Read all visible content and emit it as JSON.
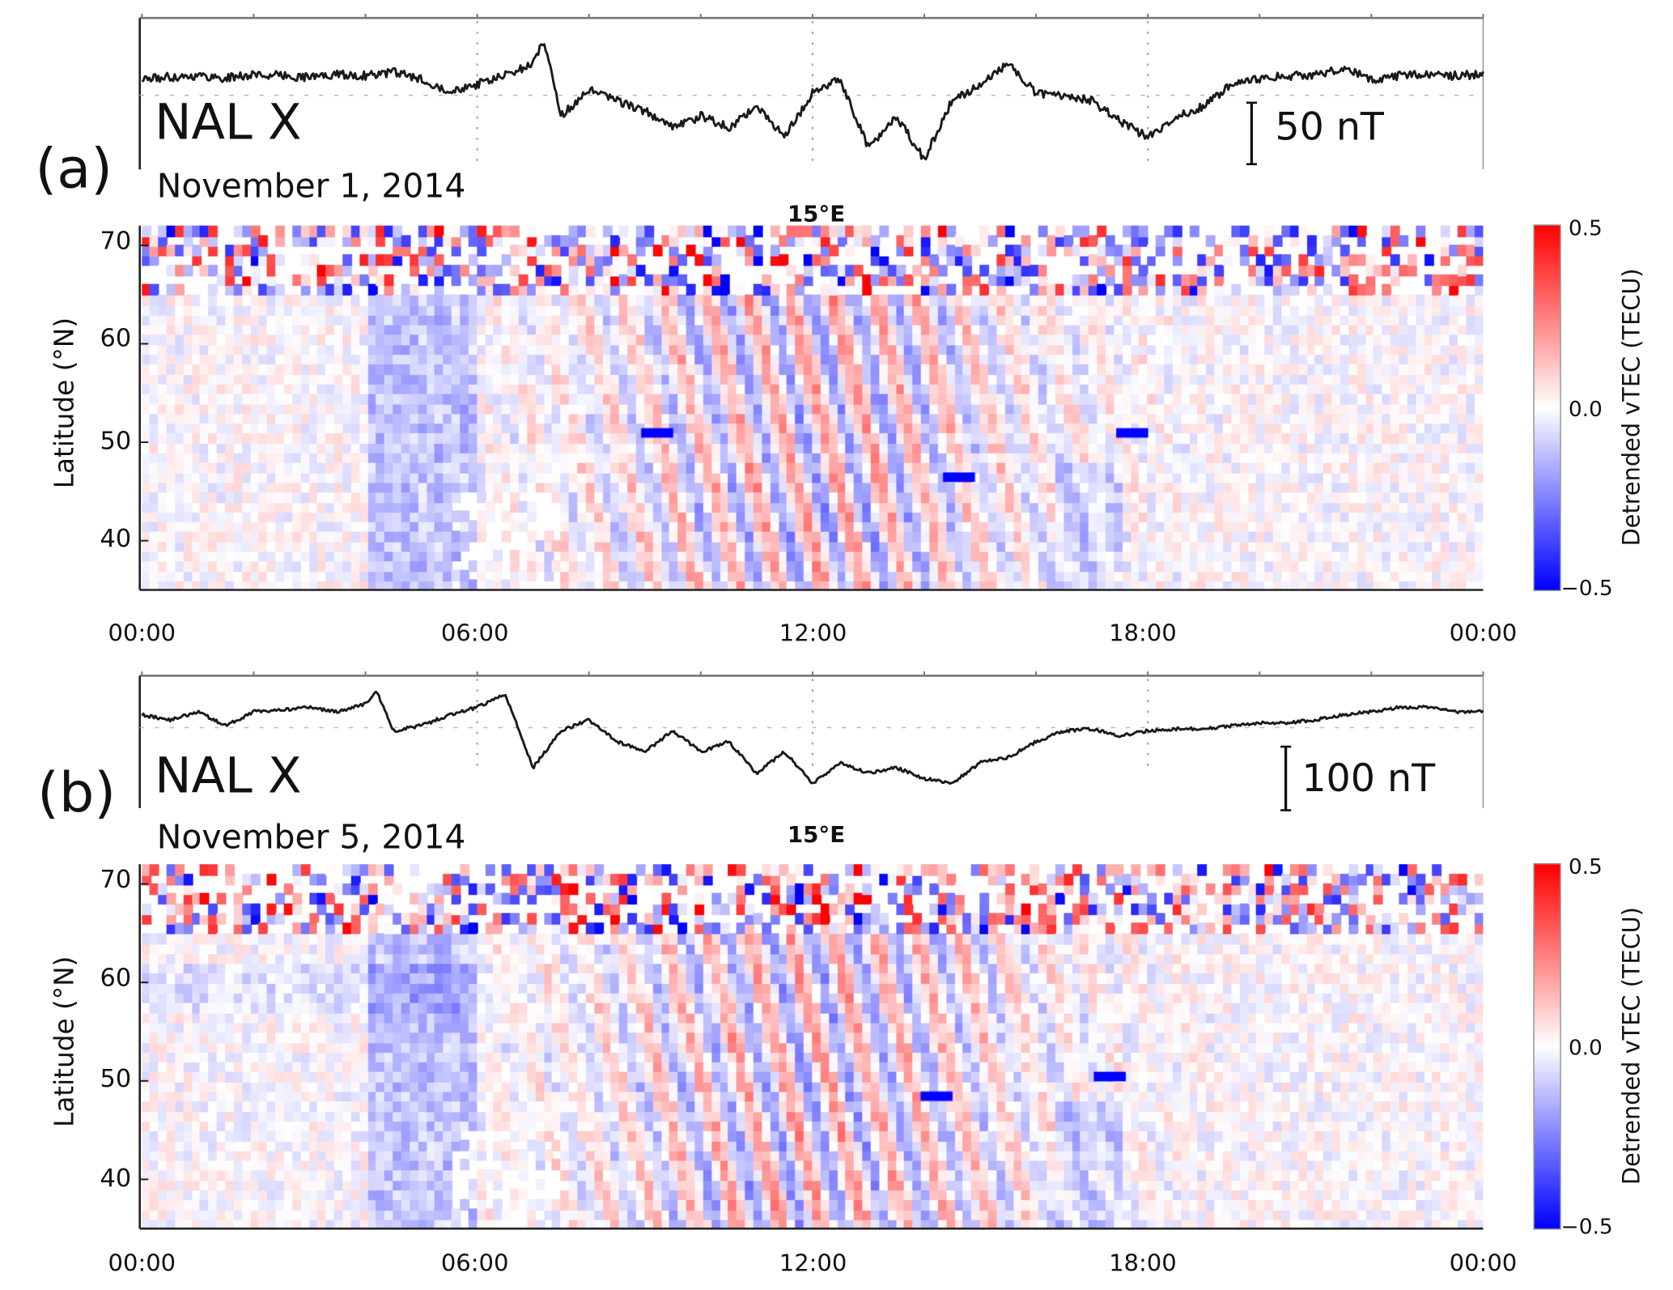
{
  "chart_data": [
    {
      "type": "heatmap",
      "panel_label": "(a)",
      "magnetometer": {
        "station_label": "NAL X",
        "scale_bar_label": "50 nT",
        "scale_bar_nT": 50,
        "times_h": [
          0,
          0.5,
          1,
          1.5,
          2,
          2.5,
          3,
          3.5,
          4,
          4.5,
          5,
          5.5,
          6,
          6.5,
          7,
          7.2,
          7.5,
          8,
          8.5,
          9,
          9.5,
          10,
          10.5,
          11,
          11.5,
          12,
          12.5,
          13,
          13.5,
          14,
          14.5,
          15,
          15.5,
          16,
          16.5,
          17,
          17.5,
          18,
          18.5,
          19,
          19.5,
          20,
          20.5,
          21,
          21.5,
          22,
          22.5,
          23,
          23.5,
          24
        ],
        "values_nT": [
          0,
          2,
          3,
          1,
          4,
          3,
          2,
          4,
          3,
          6,
          0,
          -9,
          -4,
          3,
          13,
          32,
          -30,
          -9,
          -17,
          -26,
          -39,
          -30,
          -39,
          -22,
          -47,
          -11,
          0,
          -56,
          -30,
          -65,
          -17,
          -4,
          13,
          -11,
          -13,
          -17,
          -34,
          -47,
          -30,
          -22,
          -4,
          0,
          3,
          4,
          9,
          0,
          3,
          4,
          3,
          4
        ]
      },
      "date_label": "November 1, 2014",
      "meridian_label": "15°E",
      "ylabel": "Latitude (°N)",
      "yticks": [
        "70",
        "60",
        "50",
        "40"
      ],
      "ytick_values": [
        70,
        60,
        50,
        40
      ],
      "ylim": [
        35,
        72
      ],
      "xticks": [
        "00:00",
        "06:00",
        "12:00",
        "18:00",
        "00:00"
      ],
      "xtick_values_h": [
        0,
        6,
        12,
        18,
        24
      ],
      "xlim_h": [
        0,
        24
      ],
      "colorbar": {
        "title": "Detrended vTEC (TECU)",
        "ticks": [
          "0.5",
          "0.0",
          "−0.5"
        ],
        "range": [
          -0.5,
          0.5
        ],
        "colors": {
          "max": "#ff0000",
          "mid": "#ffffff",
          "min": "#0000ff"
        }
      },
      "seed": 11,
      "notable_cells": [
        {
          "t": 9.2,
          "lat": 51,
          "v": -0.5
        },
        {
          "t": 17.7,
          "lat": 51,
          "v": -0.5
        },
        {
          "t": 14.6,
          "lat": 46.5,
          "v": -0.5
        }
      ]
    },
    {
      "type": "heatmap",
      "panel_label": "(b)",
      "magnetometer": {
        "station_label": "NAL X",
        "scale_bar_label": "100 nT",
        "scale_bar_nT": 100,
        "times_h": [
          0,
          0.5,
          1,
          1.5,
          2,
          2.5,
          3,
          3.5,
          4,
          4.2,
          4.5,
          5,
          5.5,
          6,
          6.5,
          7,
          7.5,
          8,
          8.5,
          9,
          9.5,
          10,
          10.5,
          11,
          11.5,
          12,
          12.5,
          13,
          13.5,
          14,
          14.5,
          15,
          15.5,
          16,
          16.5,
          17,
          17.5,
          18,
          18.5,
          19,
          19.5,
          20,
          20.5,
          21,
          21.5,
          22,
          22.5,
          23,
          23.5,
          24
        ],
        "values_nT": [
          -5,
          -13,
          0,
          -22,
          0,
          3,
          7,
          0,
          12,
          33,
          -30,
          -22,
          -5,
          7,
          28,
          -88,
          -30,
          -13,
          -47,
          -63,
          -30,
          -63,
          -47,
          -97,
          -63,
          -113,
          -80,
          -97,
          -88,
          -105,
          -113,
          -80,
          -72,
          -47,
          -30,
          -27,
          -38,
          -30,
          -27,
          -27,
          -22,
          -18,
          -17,
          -13,
          -5,
          0,
          7,
          7,
          0,
          0
        ]
      },
      "date_label": "November 5, 2014",
      "meridian_label": "15°E",
      "ylabel": "Latitude (°N)",
      "yticks": [
        "70",
        "60",
        "50",
        "40"
      ],
      "ytick_values": [
        70,
        60,
        50,
        40
      ],
      "ylim": [
        35,
        72
      ],
      "xticks": [
        "00:00",
        "06:00",
        "12:00",
        "18:00",
        "00:00"
      ],
      "xtick_values_h": [
        0,
        6,
        12,
        18,
        24
      ],
      "xlim_h": [
        0,
        24
      ],
      "colorbar": {
        "title": "Detrended vTEC (TECU)",
        "ticks": [
          "0.5",
          "0.0",
          "−0.5"
        ],
        "range": [
          -0.5,
          0.5
        ],
        "colors": {
          "max": "#ff0000",
          "mid": "#ffffff",
          "min": "#0000ff"
        }
      },
      "seed": 29,
      "notable_cells": [
        {
          "t": 14.2,
          "lat": 48.5,
          "v": -0.5
        },
        {
          "t": 17.3,
          "lat": 50.5,
          "v": -0.5
        }
      ]
    }
  ]
}
